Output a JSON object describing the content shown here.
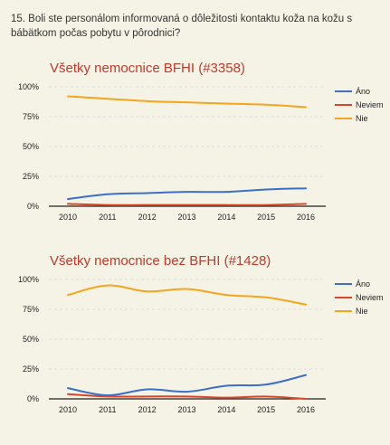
{
  "question": "15. Boli ste personálom informovaná o dôležitosti kontaktu koža na kožu s bábätkom počas pobytu v pôrodnici?",
  "chart_data": [
    {
      "type": "line",
      "title": "Všetky nemocnice BFHI (#3358)",
      "x": [
        "2010",
        "2011",
        "2012",
        "2013",
        "2014",
        "2015",
        "2016"
      ],
      "yticks": [
        "100%",
        "75%",
        "50%",
        "25%",
        "0%"
      ],
      "ylim": [
        0,
        100
      ],
      "grid": true,
      "legend": "right",
      "series": [
        {
          "name": "Áno",
          "color": "#3b6fc9",
          "values": [
            6,
            10,
            11,
            12,
            12,
            14,
            15
          ]
        },
        {
          "name": "Neviem",
          "color": "#d9472b",
          "values": [
            2,
            1,
            1,
            1,
            1,
            1,
            2
          ]
        },
        {
          "name": "Nie",
          "color": "#f5a51c",
          "values": [
            92,
            90,
            88,
            87,
            86,
            85,
            83
          ]
        }
      ]
    },
    {
      "type": "line",
      "title": "Všetky nemocnice bez BFHI (#1428)",
      "x": [
        "2010",
        "2011",
        "2012",
        "2013",
        "2014",
        "2015",
        "2016"
      ],
      "yticks": [
        "100%",
        "75%",
        "50%",
        "25%",
        "0%"
      ],
      "ylim": [
        0,
        100
      ],
      "grid": true,
      "legend": "right",
      "series": [
        {
          "name": "Áno",
          "color": "#3b6fc9",
          "values": [
            9,
            3,
            8,
            6,
            11,
            12,
            20
          ]
        },
        {
          "name": "Neviem",
          "color": "#d9472b",
          "values": [
            4,
            2,
            2,
            2,
            1,
            2,
            0
          ]
        },
        {
          "name": "Nie",
          "color": "#f5a51c",
          "values": [
            87,
            95,
            90,
            92,
            87,
            85,
            79
          ]
        }
      ]
    }
  ]
}
